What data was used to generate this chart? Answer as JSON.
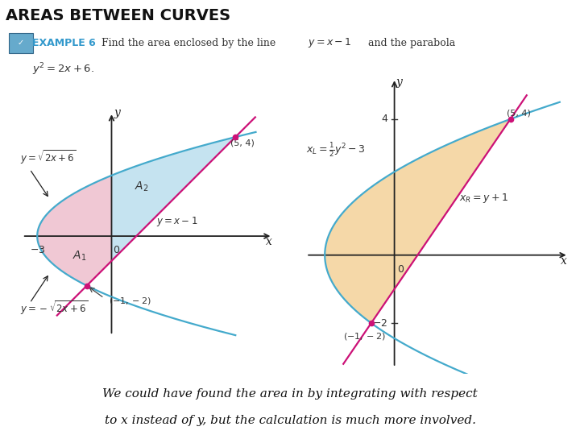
{
  "title": "AREAS BETWEEN CURVES",
  "title_bg": "#b8d8ea",
  "content_bg": "#ffffff",
  "outer_bg": "#ffffff",
  "shaded_blue": "#c5e3f0",
  "shaded_pink": "#f0c8d4",
  "shaded_orange": "#f5d8a8",
  "line_color": "#cc1177",
  "curve_color": "#44aacc",
  "axis_color": "#222222",
  "dot_color": "#cc1177",
  "text_color": "#333333",
  "example_blue": "#3399cc",
  "left_xlim": [
    -3.8,
    6.5
  ],
  "left_ylim": [
    -4.2,
    5.0
  ],
  "right_xlim": [
    -4.0,
    7.5
  ],
  "right_ylim": [
    -3.5,
    5.2
  ],
  "bottom_line1": "We could have found the area in by integrating with respect",
  "bottom_line2": "to x instead of y, but the calculation is much more involved."
}
